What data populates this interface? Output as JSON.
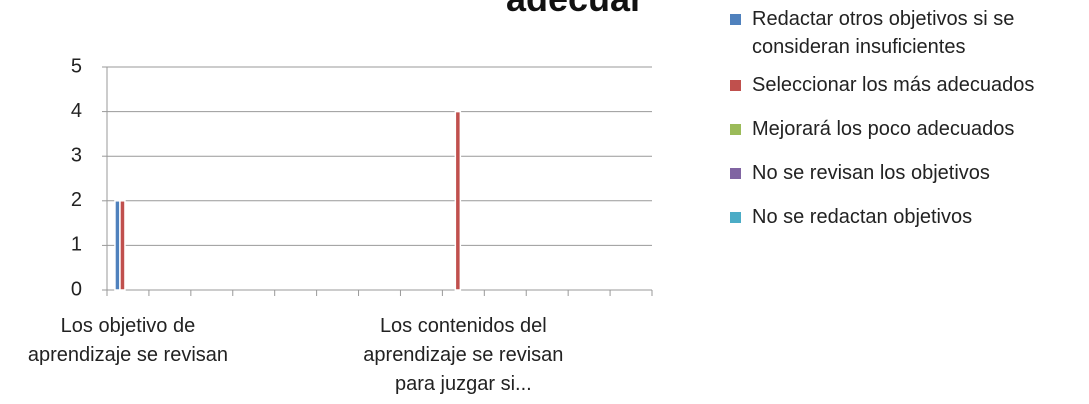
{
  "chart_data": {
    "type": "bar",
    "title": "adecuar",
    "categories": [
      "Los objetivo de aprendizaje se revisan",
      null,
      null,
      null,
      null,
      null,
      null,
      null,
      "Los contenidos del aprendizaje se revisan para juzgar si...",
      null,
      null,
      null,
      null
    ],
    "series": [
      {
        "name": "Redactar otros objetivos si se consideran insuficientes",
        "color": "#4f81bd",
        "values": [
          2,
          0,
          0,
          0,
          0,
          0,
          0,
          0,
          0,
          0,
          0,
          0,
          0
        ]
      },
      {
        "name": "Seleccionar los más adecuados",
        "color": "#c0504d",
        "values": [
          2,
          0,
          0,
          0,
          0,
          0,
          0,
          0,
          4,
          0,
          0,
          0,
          0
        ]
      },
      {
        "name": "Mejorará los poco adecuados",
        "color": "#9bbb59",
        "values": [
          0,
          0,
          0,
          0,
          0,
          0,
          0,
          0,
          0,
          0,
          0,
          0,
          0
        ]
      },
      {
        "name": "No se revisan los objetivos",
        "color": "#8064a2",
        "values": [
          0,
          0,
          0,
          0,
          0,
          0,
          0,
          0,
          0,
          0,
          0,
          0,
          0
        ]
      },
      {
        "name": "No se redactan objetivos",
        "color": "#4bacc6",
        "values": [
          0,
          0,
          0,
          0,
          0,
          0,
          0,
          0,
          0,
          0,
          0,
          0,
          0
        ]
      }
    ],
    "ylim": [
      0,
      5
    ],
    "yticks": [
      0,
      1,
      2,
      3,
      4,
      5
    ],
    "grid": true,
    "legend": "right"
  }
}
